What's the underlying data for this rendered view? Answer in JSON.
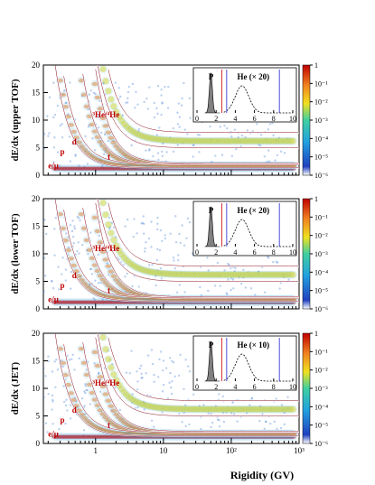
{
  "figure": {
    "xlabel": "Rigidity (GV)",
    "x_ticks": [
      "1",
      "10",
      "10²",
      "10³"
    ],
    "colorbar_ticks": [
      "1",
      "10⁻¹",
      "10⁻²",
      "10⁻³",
      "10⁻⁴",
      "10⁻⁵",
      "10⁻⁶"
    ],
    "colors": {
      "heat_high": "#d00000",
      "heat_mid": "#f0e020",
      "heat_low": "#20a0e0",
      "band_line": "#ffffff",
      "label_red": "#c00000"
    }
  },
  "chart_data": [
    {
      "type": "heatmap",
      "ylabel": "dE/dx (upper TOF)",
      "ylim": [
        0,
        20
      ],
      "y_ticks": [
        "0",
        "5",
        "10",
        "15",
        "20"
      ],
      "xscale": "log",
      "xlim": [
        0.17,
        1000
      ],
      "zscale": "log",
      "zlim": [
        1e-06,
        1
      ],
      "labels": {
        "electron": "e/μ",
        "proton": "p",
        "deuteron": "d",
        "triton": "t",
        "helium": "³He/⁴He"
      },
      "inset": {
        "p_label": "P",
        "he_label": "He (× 20)",
        "x_ticks": [
          "0",
          "2",
          "4",
          "6",
          "8",
          "10"
        ]
      }
    },
    {
      "type": "heatmap",
      "ylabel": "dE/dx (lower TOF)",
      "ylim": [
        0,
        20
      ],
      "y_ticks": [
        "0",
        "5",
        "10",
        "15",
        "20"
      ],
      "xscale": "log",
      "xlim": [
        0.17,
        1000
      ],
      "zscale": "log",
      "zlim": [
        1e-06,
        1
      ],
      "labels": {
        "electron": "e/μ",
        "proton": "p",
        "deuteron": "d",
        "triton": "t",
        "helium": "³He/⁴He"
      },
      "inset": {
        "p_label": "P",
        "he_label": "He (× 20)",
        "x_ticks": [
          "0",
          "2",
          "4",
          "6",
          "8",
          "10"
        ]
      }
    },
    {
      "type": "heatmap",
      "ylabel": "dE/dx (JET)",
      "ylim": [
        0,
        20
      ],
      "y_ticks": [
        "0",
        "5",
        "10",
        "15",
        "20"
      ],
      "xscale": "log",
      "xlim": [
        0.17,
        1000
      ],
      "zscale": "log",
      "zlim": [
        1e-06,
        1
      ],
      "labels": {
        "electron": "e/μ",
        "proton": "p",
        "deuteron": "d",
        "triton": "t",
        "helium": "³He/⁴He"
      },
      "inset": {
        "p_label": "P",
        "he_label": "He (× 10)",
        "x_ticks": [
          "0",
          "2",
          "4",
          "6",
          "8",
          "10"
        ]
      }
    }
  ]
}
